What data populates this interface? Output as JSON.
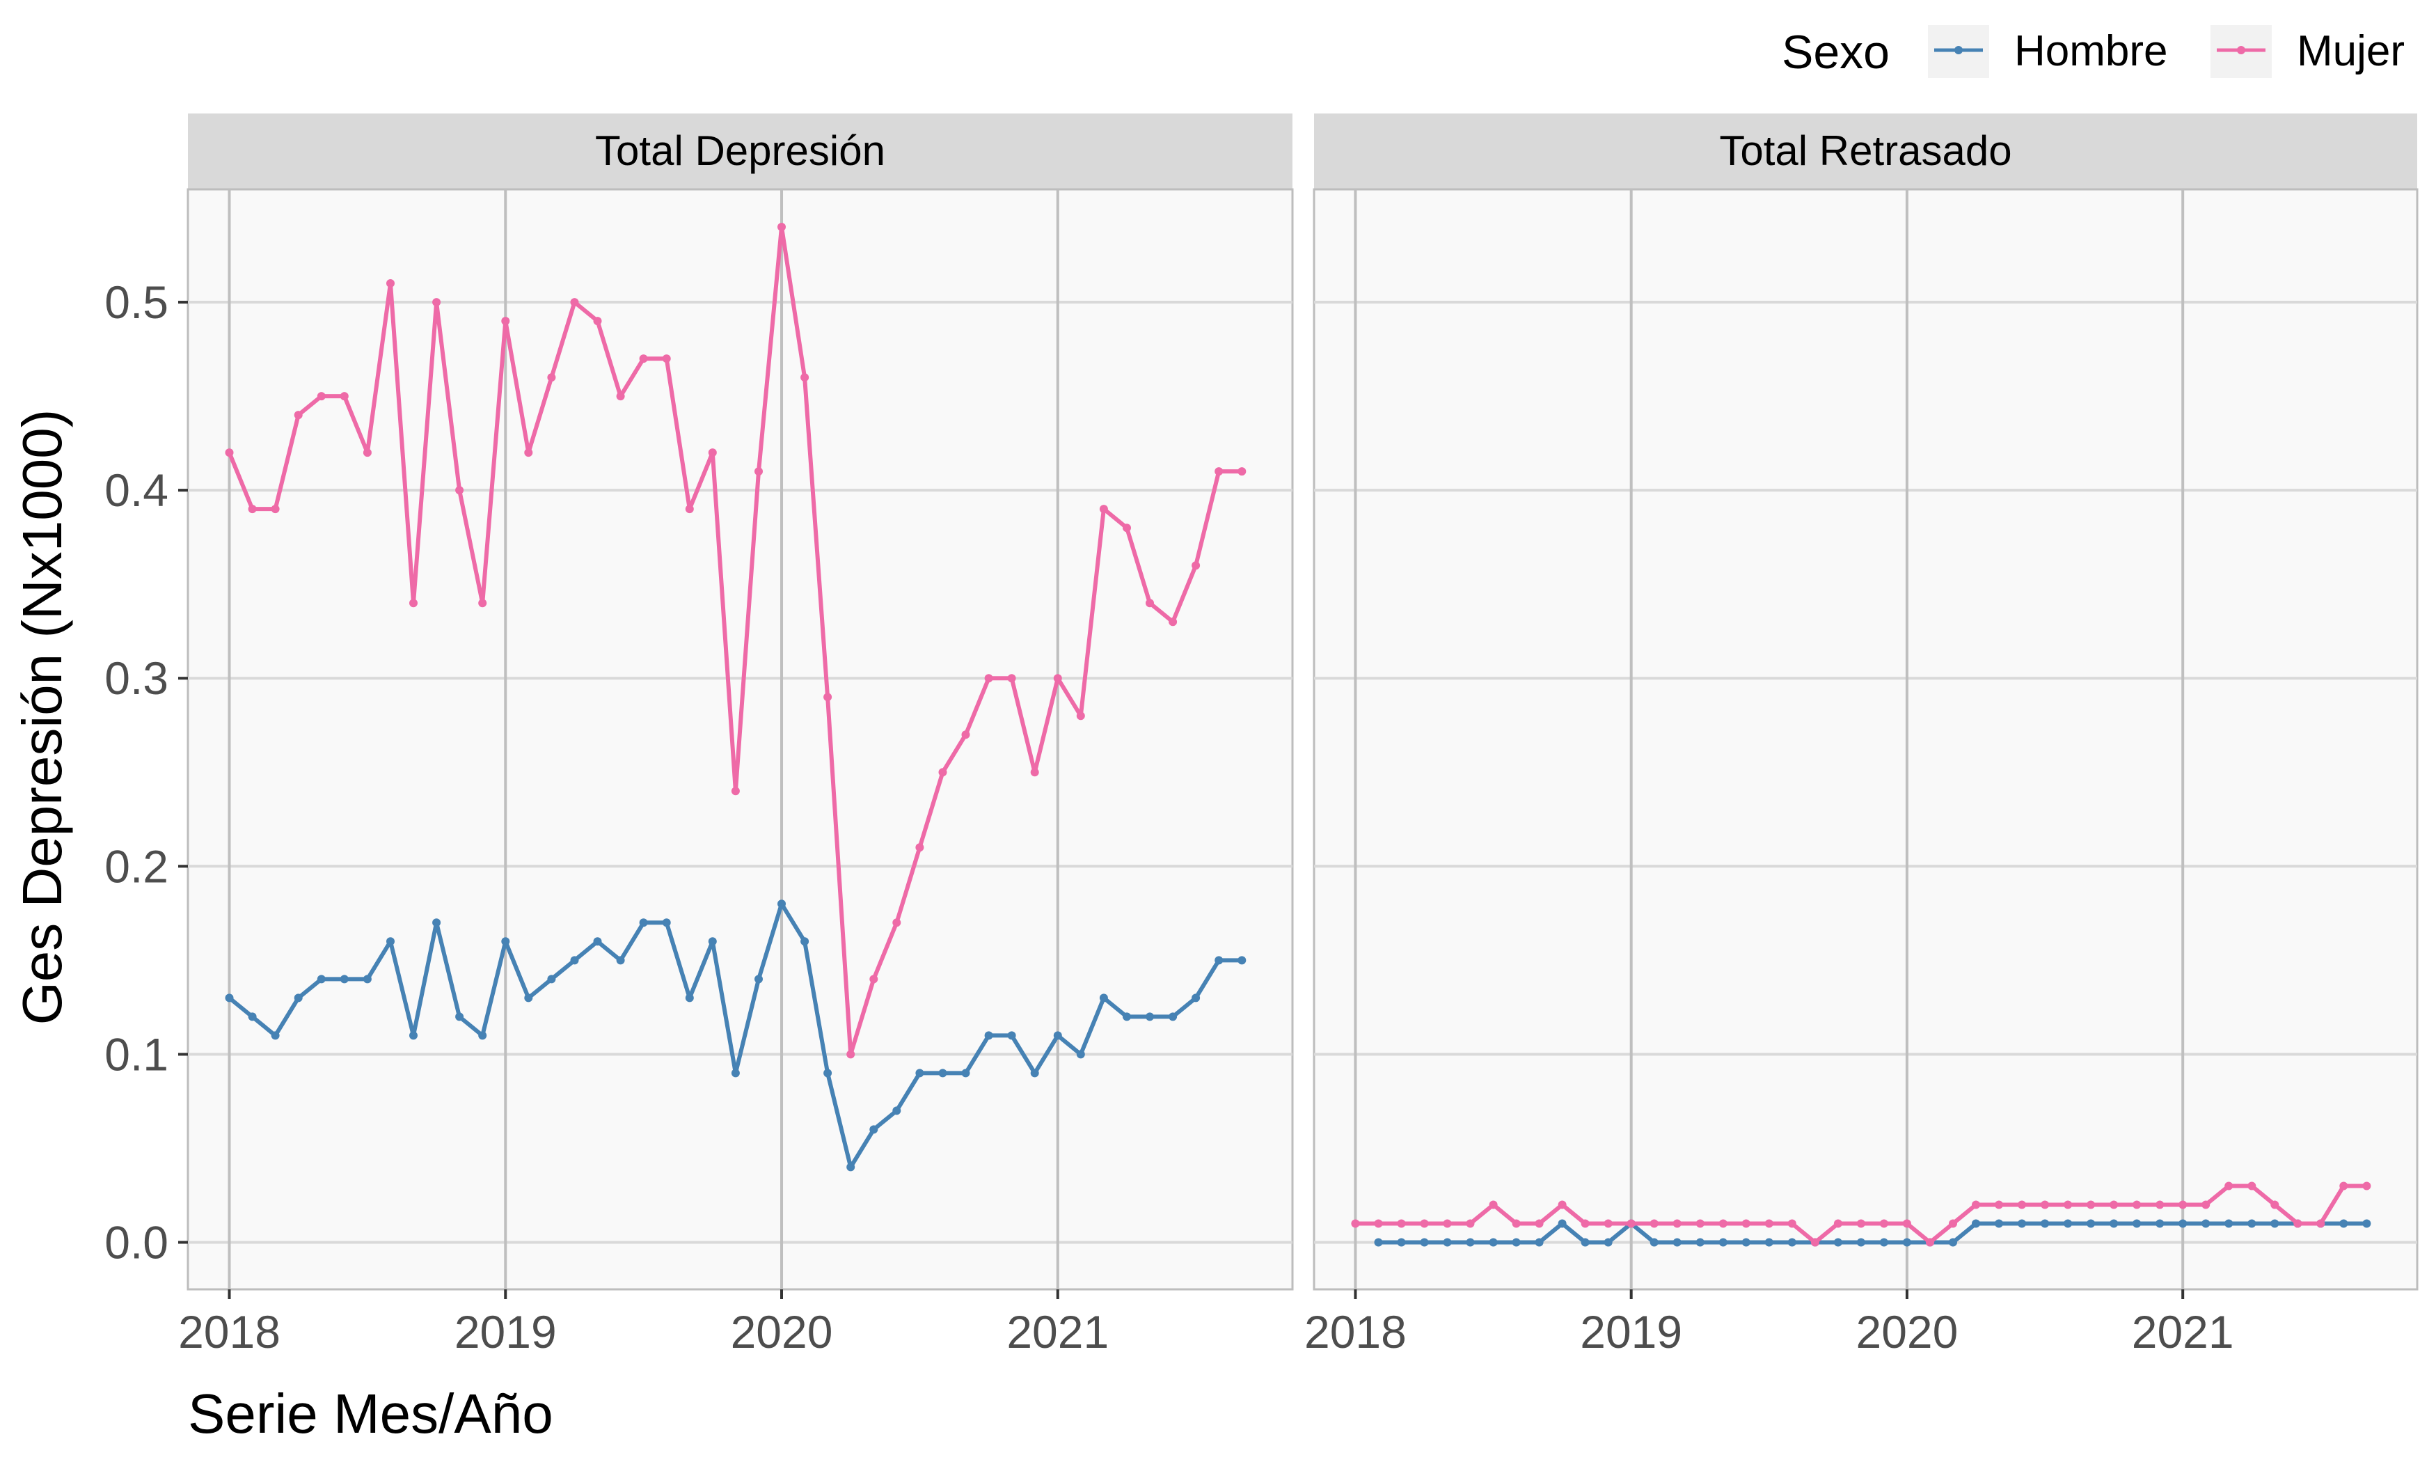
{
  "chart_data": {
    "type": "line",
    "ylabel": "Ges Depresión (Nx1000)",
    "xlabel": "Serie Mes/Año",
    "ylim": [
      -0.025,
      0.56
    ],
    "y_ticks": [
      "0.0",
      "0.1",
      "0.2",
      "0.3",
      "0.4",
      "0.5"
    ],
    "y_tick_values": [
      0,
      0.1,
      0.2,
      0.3,
      0.4,
      0.5
    ],
    "x_ticks": [
      "2018",
      "2019",
      "2020",
      "2021"
    ],
    "x_tick_values": [
      2018,
      2019,
      2020,
      2021
    ],
    "x_range": [
      2017.85,
      2021.85
    ],
    "grid": true,
    "legend": {
      "title": "Sexo",
      "position": "top-right",
      "entries": [
        {
          "name": "Hombre",
          "color": "#4682B4"
        },
        {
          "name": "Mujer",
          "color": "#EE6AA7"
        }
      ]
    },
    "panels": [
      {
        "title": "Total Depresión",
        "x": [
          "2018-01",
          "2018-02",
          "2018-03",
          "2018-04",
          "2018-05",
          "2018-06",
          "2018-07",
          "2018-08",
          "2018-09",
          "2018-10",
          "2018-11",
          "2018-12",
          "2019-01",
          "2019-02",
          "2019-03",
          "2019-04",
          "2019-05",
          "2019-06",
          "2019-07",
          "2019-08",
          "2019-09",
          "2019-10",
          "2019-11",
          "2019-12",
          "2020-01",
          "2020-02",
          "2020-03",
          "2020-04",
          "2020-05",
          "2020-06",
          "2020-07",
          "2020-08",
          "2020-09",
          "2020-10",
          "2020-11",
          "2020-12",
          "2021-01",
          "2021-02",
          "2021-03",
          "2021-04",
          "2021-05",
          "2021-06",
          "2021-07",
          "2021-08",
          "2021-09"
        ],
        "series": [
          {
            "name": "Hombre",
            "color": "#4682B4",
            "values": [
              0.13,
              0.12,
              0.11,
              0.13,
              0.14,
              0.14,
              0.14,
              0.16,
              0.11,
              0.17,
              0.12,
              0.11,
              0.16,
              0.13,
              0.14,
              0.15,
              0.16,
              0.15,
              0.17,
              0.17,
              0.13,
              0.16,
              0.09,
              0.14,
              0.18,
              0.16,
              0.09,
              0.04,
              0.06,
              0.07,
              0.09,
              0.09,
              0.09,
              0.11,
              0.11,
              0.09,
              0.11,
              0.1,
              0.13,
              0.12,
              0.12,
              0.12,
              0.13,
              0.15,
              0.15
            ]
          },
          {
            "name": "Mujer",
            "color": "#EE6AA7",
            "values": [
              0.42,
              0.39,
              0.39,
              0.44,
              0.45,
              0.45,
              0.42,
              0.51,
              0.34,
              0.5,
              0.4,
              0.34,
              0.49,
              0.42,
              0.46,
              0.5,
              0.49,
              0.45,
              0.47,
              0.47,
              0.39,
              0.42,
              0.24,
              0.41,
              0.54,
              0.46,
              0.29,
              0.1,
              0.14,
              0.17,
              0.21,
              0.25,
              0.27,
              0.3,
              0.3,
              0.25,
              0.3,
              0.28,
              0.39,
              0.38,
              0.34,
              0.33,
              0.36,
              0.41,
              0.41
            ]
          }
        ]
      },
      {
        "title": "Total Retrasado",
        "x": [
          "2018-01",
          "2018-02",
          "2018-03",
          "2018-04",
          "2018-05",
          "2018-06",
          "2018-07",
          "2018-08",
          "2018-09",
          "2018-10",
          "2018-11",
          "2018-12",
          "2019-01",
          "2019-02",
          "2019-03",
          "2019-04",
          "2019-05",
          "2019-06",
          "2019-07",
          "2019-08",
          "2019-09",
          "2019-10",
          "2019-11",
          "2019-12",
          "2020-01",
          "2020-02",
          "2020-03",
          "2020-04",
          "2020-05",
          "2020-06",
          "2020-07",
          "2020-08",
          "2020-09",
          "2020-10",
          "2020-11",
          "2020-12",
          "2021-01",
          "2021-02",
          "2021-03",
          "2021-04",
          "2021-05",
          "2021-06",
          "2021-07",
          "2021-08",
          "2021-09"
        ],
        "series": [
          {
            "name": "Hombre",
            "color": "#4682B4",
            "values": [
              null,
              0,
              0,
              0,
              0,
              0,
              0,
              0,
              0,
              0.01,
              0,
              0,
              0.01,
              0,
              0,
              0,
              0,
              0,
              0,
              0,
              0,
              0,
              0,
              0,
              0,
              0,
              0,
              0.01,
              0.01,
              0.01,
              0.01,
              0.01,
              0.01,
              0.01,
              0.01,
              0.01,
              0.01,
              0.01,
              0.01,
              0.01,
              0.01,
              0.01,
              0.01,
              0.01,
              0.01
            ]
          },
          {
            "name": "Mujer",
            "color": "#EE6AA7",
            "values": [
              0.01,
              0.01,
              0.01,
              0.01,
              0.01,
              0.01,
              0.02,
              0.01,
              0.01,
              0.02,
              0.01,
              0.01,
              0.01,
              0.01,
              0.01,
              0.01,
              0.01,
              0.01,
              0.01,
              0.01,
              0,
              0.01,
              0.01,
              0.01,
              0.01,
              0,
              0.01,
              0.02,
              0.02,
              0.02,
              0.02,
              0.02,
              0.02,
              0.02,
              0.02,
              0.02,
              0.02,
              0.02,
              0.03,
              0.03,
              0.02,
              0.01,
              0.01,
              0.03,
              0.03
            ]
          }
        ]
      }
    ]
  }
}
